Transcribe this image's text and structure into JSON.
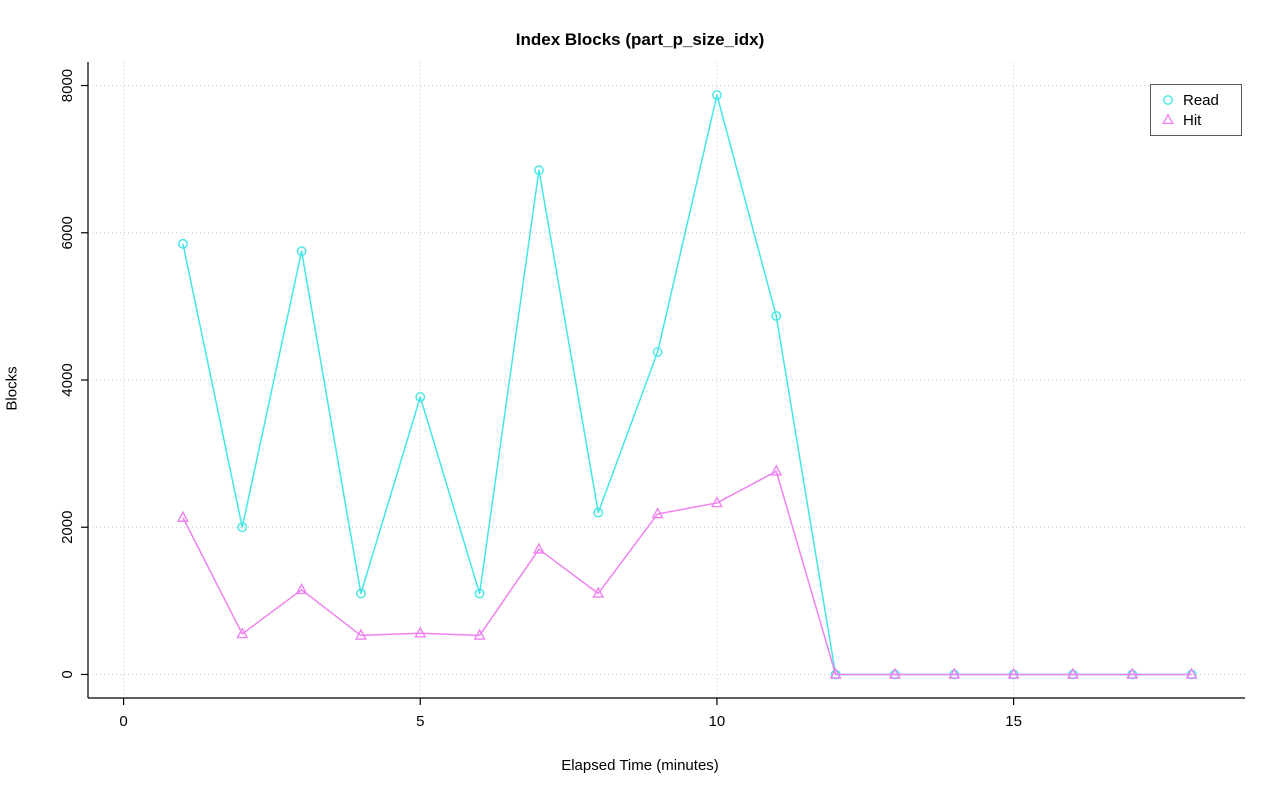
{
  "chart_data": {
    "type": "line",
    "title": "Index Blocks (part_p_size_idx)",
    "xlabel": "Elapsed Time (minutes)",
    "ylabel": "Blocks",
    "x": [
      1,
      2,
      3,
      4,
      5,
      6,
      7,
      8,
      9,
      10,
      11,
      12,
      13,
      14,
      15,
      16,
      17,
      18
    ],
    "series": [
      {
        "name": "Read",
        "color": "#45E6E6",
        "marker": "circle",
        "values": [
          5850,
          2000,
          5750,
          1100,
          3770,
          1100,
          6850,
          2200,
          4380,
          7870,
          4870,
          0,
          0,
          0,
          0,
          0,
          0,
          0
        ]
      },
      {
        "name": "Hit",
        "color": "#EE82EE",
        "marker": "triangle",
        "values": [
          2130,
          550,
          1150,
          530,
          560,
          530,
          1700,
          1100,
          2180,
          2330,
          2760,
          0,
          0,
          0,
          0,
          0,
          0,
          0
        ]
      }
    ],
    "xticks": [
      0,
      5,
      10,
      15
    ],
    "yticks": [
      0,
      2000,
      4000,
      6000,
      8000
    ],
    "xlim": [
      -0.6,
      18.9
    ],
    "ylim": [
      -320,
      8320
    ],
    "grid": true,
    "grid_color": "#c8c8c8",
    "axis_color": "#000000",
    "legend_position": "top-right"
  }
}
